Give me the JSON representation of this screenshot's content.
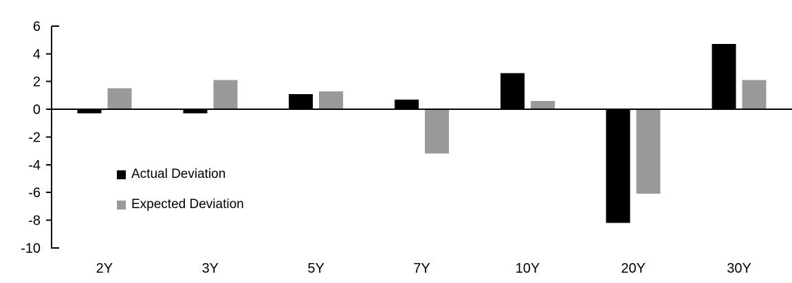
{
  "chart_data": {
    "type": "bar",
    "title": "",
    "xlabel": "",
    "ylabel": "",
    "categories": [
      "2Y",
      "3Y",
      "5Y",
      "7Y",
      "10Y",
      "20Y",
      "30Y"
    ],
    "series": [
      {
        "name": "Actual Deviation",
        "color": "#000000",
        "values": [
          -0.3,
          -0.3,
          1.1,
          0.7,
          2.6,
          -8.2,
          4.7
        ]
      },
      {
        "name": "Expected Deviation",
        "color": "#999999",
        "values": [
          1.5,
          2.1,
          1.3,
          -3.2,
          0.6,
          -6.1,
          2.1
        ]
      }
    ],
    "ylim": [
      -10,
      6
    ],
    "yticks": [
      6,
      4,
      2,
      0,
      -2,
      -4,
      -6,
      -8,
      -10
    ],
    "grid": false,
    "legend_position": "inside-left",
    "axis_color": "#000000",
    "background": "#ffffff"
  }
}
